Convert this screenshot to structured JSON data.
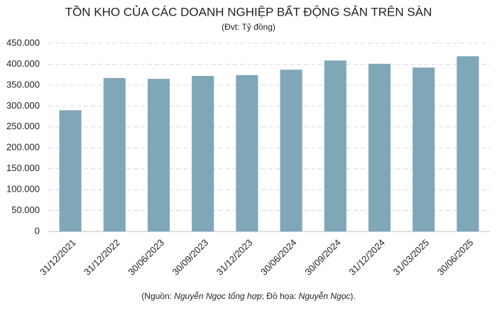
{
  "chart_data": {
    "type": "bar",
    "title": "TỒN KHO CỦA CÁC DOANH NGHIỆP BẤT ĐỘNG SẢN TRÊN SÀN",
    "subtitle": "(Đvt: Tỷ đồng)",
    "note": [
      "(Nguồn: ",
      "Nguyễn Ngọc tổng hợp",
      "; Đồ họa: ",
      "Nguyễn Ngọc",
      ")."
    ],
    "categories": [
      "31/12/2021",
      "31/12/2022",
      "30/06/2023",
      "30/09/2023",
      "31/12/2023",
      "30/06/2024",
      "30/09/2024",
      "31/12/2024",
      "31/03/2025",
      "30/06/2025"
    ],
    "values": [
      290000,
      367000,
      365000,
      372000,
      374000,
      387000,
      409000,
      401000,
      392000,
      419000
    ],
    "color": "#7fa7b8",
    "ylim": [
      0,
      450000
    ],
    "yticks": [
      0,
      {
        "value": 50000,
        "label": "50.000"
      },
      {
        "value": 100000,
        "label": "100.000"
      },
      {
        "value": 150000,
        "label": "150.000"
      },
      {
        "value": 200000,
        "label": "200.000"
      },
      {
        "value": 250000,
        "label": "250.000"
      },
      {
        "value": 300000,
        "label": "300.000"
      },
      {
        "value": 350000,
        "label": "350.000"
      },
      {
        "value": 400000,
        "label": "400.000"
      },
      {
        "value": 450000,
        "label": "450.000"
      }
    ],
    "grid": true
  }
}
